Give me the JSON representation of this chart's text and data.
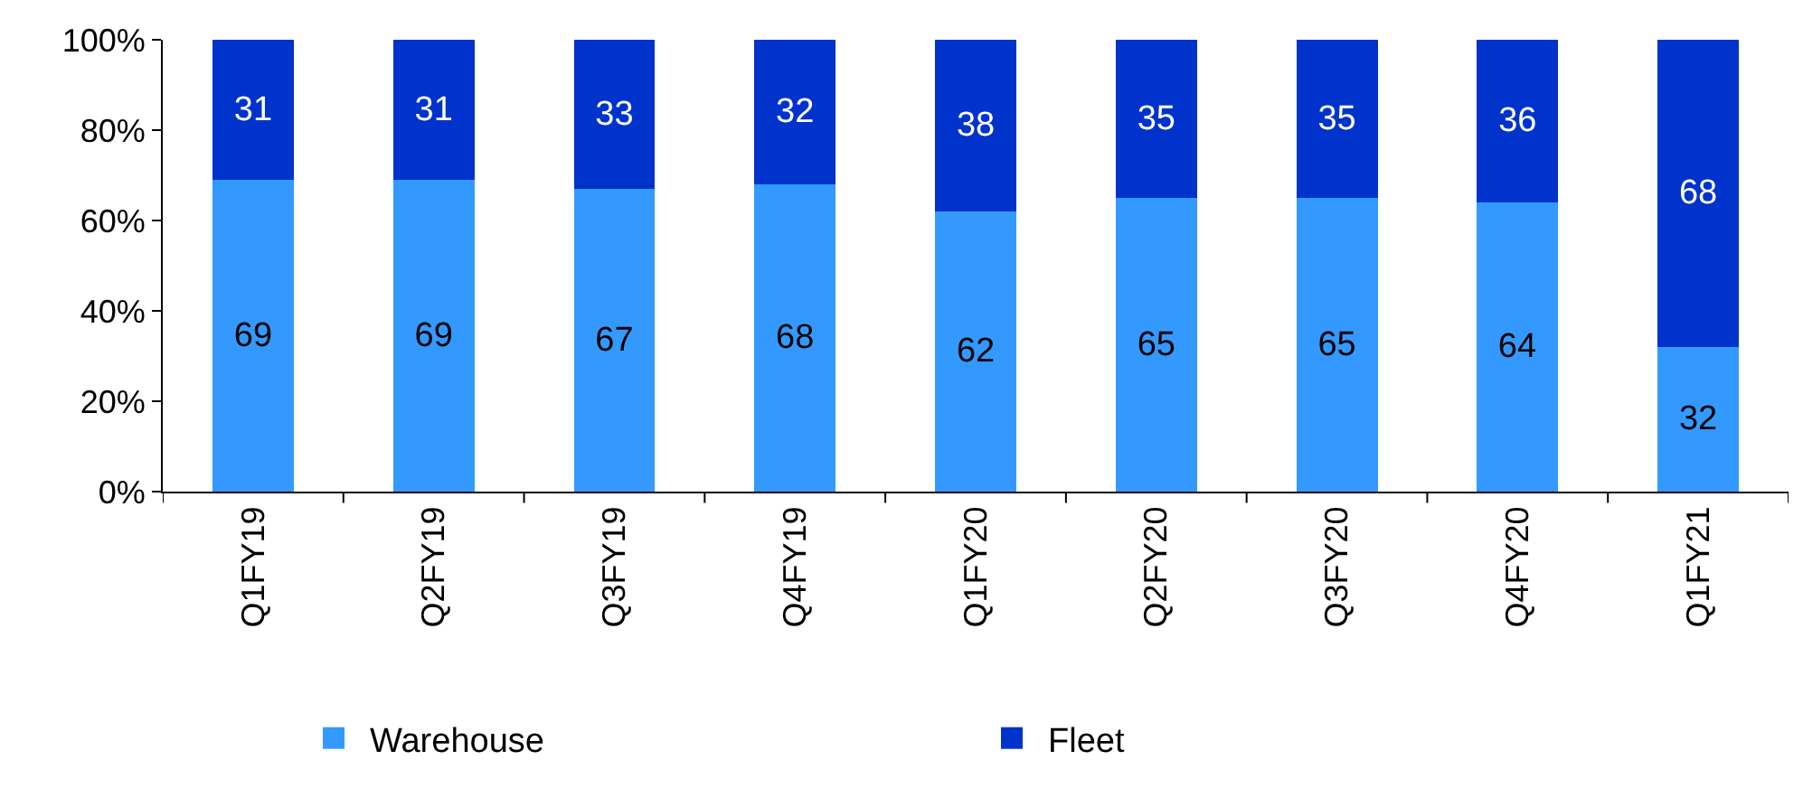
{
  "chart_data": {
    "type": "bar",
    "stacked": true,
    "data_labels": true,
    "legend": "bottom",
    "categories": [
      "Q1FY19",
      "Q2FY19",
      "Q3FY19",
      "Q4FY19",
      "Q1FY20",
      "Q2FY20",
      "Q3FY20",
      "Q4FY20",
      "Q1FY21"
    ],
    "series": [
      {
        "name": "Warehouse",
        "color": "#3399ff",
        "values": [
          69,
          69,
          67,
          68,
          62,
          65,
          65,
          64,
          32
        ]
      },
      {
        "name": "Fleet",
        "color": "#0033cc",
        "values": [
          31,
          31,
          33,
          32,
          38,
          35,
          35,
          36,
          68
        ]
      }
    ],
    "ylim": [
      0,
      100
    ],
    "yticks": [
      {
        "value": 0,
        "label": "0%"
      },
      {
        "value": 20,
        "label": "20%"
      },
      {
        "value": 40,
        "label": "40%"
      },
      {
        "value": 60,
        "label": "60%"
      },
      {
        "value": 80,
        "label": "80%"
      },
      {
        "value": 100,
        "label": "100%"
      }
    ]
  }
}
